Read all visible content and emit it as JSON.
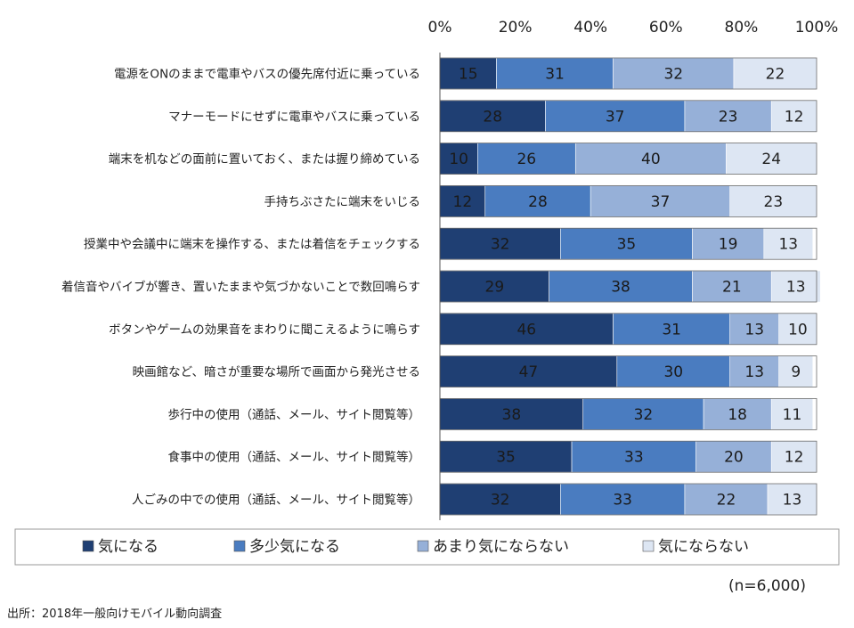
{
  "chart_data": {
    "type": "bar",
    "orientation": "horizontal",
    "stacked": true,
    "categories": [
      "電源をONのままで電車やバスの優先席付近に乗っている",
      "マナーモードにせずに電車やバスに乗っている",
      "端末を机などの面前に置いておく、または握り締めている",
      "手持ちぶさたに端末をいじる",
      "授業中や会議中に端末を操作する、または着信をチェックする",
      "着信音やバイブが響き、置いたままや気づかないことで数回鳴らす",
      "ボタンやゲームの効果音をまわりに聞こえるように鳴らす",
      "映画館など、暗さが重要な場所で画面から発光させる",
      "歩行中の使用（通話、メール、サイト閲覧等）",
      "食事中の使用（通話、メール、サイト閲覧等）",
      "人ごみの中での使用（通話、メール、サイト閲覧等）"
    ],
    "series": [
      {
        "name": "気になる",
        "color": "#1f3f73",
        "values": [
          15,
          28,
          10,
          12,
          32,
          29,
          46,
          47,
          38,
          35,
          32
        ]
      },
      {
        "name": "多少気になる",
        "color": "#4a7cc0",
        "values": [
          31,
          37,
          26,
          28,
          35,
          38,
          31,
          30,
          32,
          33,
          33
        ]
      },
      {
        "name": "あまり気にならない",
        "color": "#96b0d8",
        "values": [
          32,
          23,
          40,
          37,
          19,
          21,
          13,
          13,
          18,
          20,
          22
        ]
      },
      {
        "name": "気にならない",
        "color": "#dde6f3",
        "values": [
          22,
          12,
          24,
          23,
          13,
          13,
          10,
          9,
          11,
          12,
          13
        ]
      }
    ],
    "xlim": [
      0,
      100
    ],
    "x_ticks": [
      "0%",
      "20%",
      "40%",
      "60%",
      "80%",
      "100%"
    ],
    "x_axis_position": "top",
    "grid": false,
    "legend_position": "bottom",
    "value_label_colors": {
      "dark": "#ffffff",
      "light": "#222222"
    }
  },
  "note": "(n=6,000)",
  "source": "出所：2018年一般向けモバイル動向調査"
}
